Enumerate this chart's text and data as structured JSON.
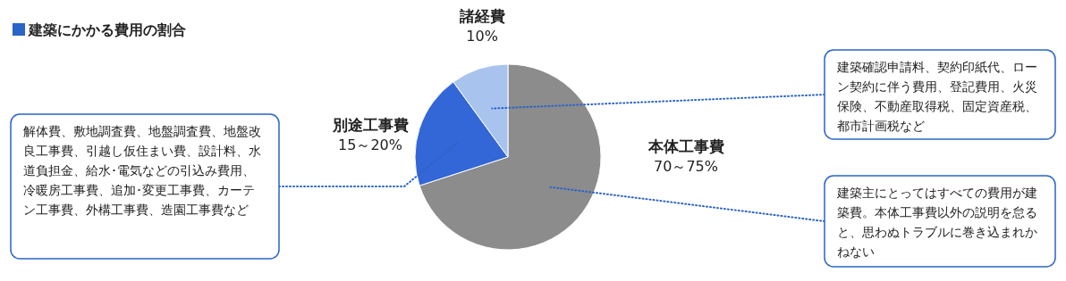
{
  "chart_data": {
    "type": "pie",
    "title": "建築にかかる費用の割合",
    "categories": [
      "本体工事費",
      "別途工事費",
      "諸経費"
    ],
    "values": [
      70,
      20,
      10
    ],
    "value_labels": [
      "70～75%",
      "15～20%",
      "10%"
    ],
    "colors": [
      "#8c8c8c",
      "#3366d6",
      "#a8c3ee"
    ],
    "annotations": [
      {
        "text": "解体費、敷地調査費、地盤調査費、地盤改良工事費、引越し仮住まい費、設計料、水道負担金、給水･電気などの引込み費用、冷暖房工事費、追加･変更工事費、カーテン工事費、外構工事費、造園工事費など",
        "x": "別途工事費"
      },
      {
        "text": "建築確認申請料、契約印紙代、ローン契約に伴う費用、登記費用、火災保険、不動産取得税、固定資産税、都市計画税など",
        "x": "諸経費"
      },
      {
        "text": "建築主にとってはすべての費用が建築費。本体工事費以外の説明を怠ると、思わぬトラブルに巻き込まれかねない",
        "x": "本体工事費"
      }
    ]
  }
}
